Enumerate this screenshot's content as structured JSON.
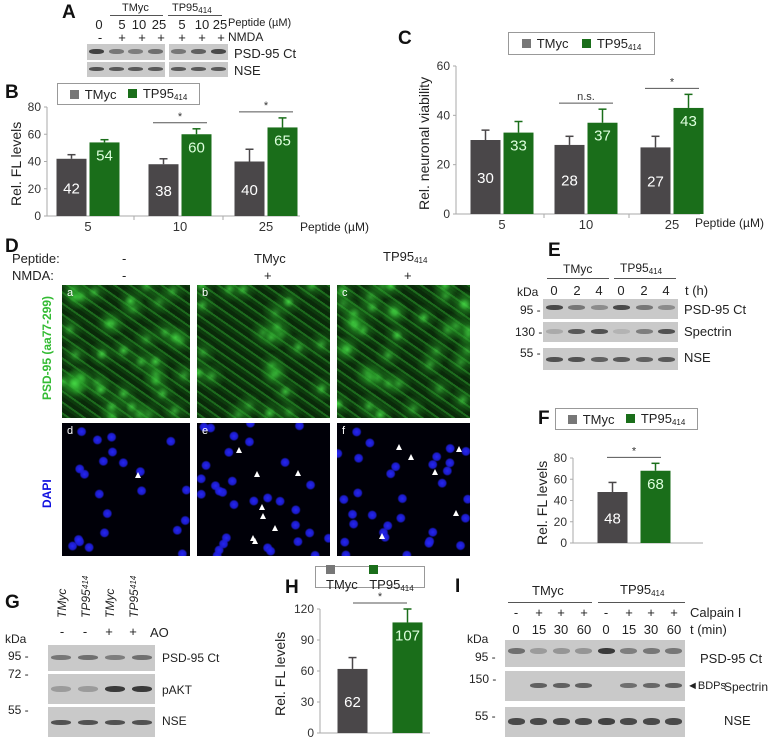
{
  "colors": {
    "tmyc": "#4a4749",
    "tp95": "#1a6e1a",
    "dapi": "#1010e0",
    "psd95": "#33cc33"
  },
  "legend": {
    "tmyc": "TMyc",
    "tp95_base": "TP95",
    "tp95_sub": "414"
  },
  "panelA": {
    "label": "A",
    "group1": "TMyc",
    "group2_base": "TP95",
    "group2_sub": "414",
    "lanes": [
      "0",
      "5",
      "10",
      "25",
      "5",
      "10",
      "25"
    ],
    "nmda": [
      "-",
      "+",
      "+",
      "+",
      "+",
      "+",
      "+"
    ],
    "peptide_label": "Peptide (µM)",
    "nmda_label": "NMDA",
    "rows": [
      "PSD-95 Ct",
      "NSE"
    ]
  },
  "panelE": {
    "label": "E",
    "group1": "TMyc",
    "group2_base": "TP95",
    "group2_sub": "414",
    "lanes": [
      "0",
      "2",
      "4",
      "0",
      "2",
      "4"
    ],
    "time_label": "t (h)",
    "kda": "kDa",
    "markers": [
      "95 -",
      "130 -",
      "55 -"
    ],
    "rows": [
      "PSD-95 Ct",
      "Spectrin",
      "NSE"
    ]
  },
  "panelD": {
    "label": "D",
    "peptide_label": "Peptide:",
    "nmda_label": "NMDA:",
    "columns": [
      {
        "peptide": "-",
        "nmda": "-"
      },
      {
        "peptide": "TMyc",
        "nmda": "+"
      },
      {
        "peptide_base": "TP95",
        "peptide_sub": "414",
        "nmda": "+"
      }
    ],
    "row_labels": [
      "PSD-95 (aa77-299)",
      "DAPI"
    ],
    "tags": [
      "a",
      "b",
      "c",
      "d",
      "e",
      "f"
    ]
  },
  "panelG": {
    "label": "G",
    "lanes": [
      "TMyc",
      "TP95",
      "TMyc",
      "TP95"
    ],
    "lane_sub": "414",
    "ao": [
      "-",
      "-",
      "+",
      "+"
    ],
    "ao_label": "AO",
    "kda": "kDa",
    "markers": [
      "95 -",
      "72 -",
      "55 -"
    ],
    "rows": [
      "PSD-95 Ct",
      "pAKT",
      "NSE"
    ]
  },
  "panelI": {
    "label": "I",
    "group1": "TMyc",
    "group2_base": "TP95",
    "group2_sub": "414",
    "calpain": [
      "-",
      "+",
      "+",
      "+",
      "-",
      "+",
      "+",
      "+"
    ],
    "times": [
      "0",
      "15",
      "30",
      "60",
      "0",
      "15",
      "30",
      "60"
    ],
    "calpain_label": "Calpain I",
    "time_label": "t (min)",
    "kda": "kDa",
    "markers": [
      "95 -",
      "150 -",
      "55 -"
    ],
    "rows": [
      "PSD-95 Ct",
      "Spectrin",
      "NSE"
    ],
    "bdp_label": "◄BDPs"
  },
  "chart_data": [
    {
      "id": "B",
      "label": "B",
      "type": "bar",
      "categories": [
        "5",
        "10",
        "25"
      ],
      "xlabel": "Peptide (µM)",
      "ylabel": "Rel. FL levels",
      "ylim": [
        0,
        80
      ],
      "yticks": [
        "0",
        "20",
        "40",
        "60",
        "80"
      ],
      "series": [
        {
          "name": "TMyc",
          "values": [
            42,
            38,
            40
          ],
          "errors": [
            3,
            4,
            9
          ]
        },
        {
          "name": "TP95414",
          "values": [
            54,
            60,
            65
          ],
          "errors": [
            2,
            4,
            7
          ]
        }
      ],
      "significance": [
        {
          "category": "10",
          "text": "*"
        },
        {
          "category": "25",
          "text": "*"
        }
      ]
    },
    {
      "id": "C",
      "label": "C",
      "type": "bar",
      "categories": [
        "5",
        "10",
        "25"
      ],
      "xlabel": "Peptide (µM)",
      "ylabel": "Rel. neuronal viability",
      "ylim": [
        0,
        60
      ],
      "yticks": [
        "0",
        "20",
        "40",
        "60"
      ],
      "series": [
        {
          "name": "TMyc",
          "values": [
            30,
            28,
            27
          ],
          "errors": [
            4,
            3.5,
            4.5
          ]
        },
        {
          "name": "TP95414",
          "values": [
            33,
            37,
            43
          ],
          "errors": [
            4.5,
            5.5,
            5.5
          ]
        }
      ],
      "significance": [
        {
          "category": "10",
          "text": "n.s."
        },
        {
          "category": "25",
          "text": "*"
        }
      ]
    },
    {
      "id": "F",
      "label": "F",
      "type": "bar",
      "categories": [
        ""
      ],
      "xlabel": "",
      "ylabel": "Rel. FL levels",
      "ylim": [
        0,
        80
      ],
      "yticks": [
        "0",
        "20",
        "40",
        "60",
        "80"
      ],
      "series": [
        {
          "name": "TMyc",
          "values": [
            48
          ],
          "errors": [
            9
          ]
        },
        {
          "name": "TP95414",
          "values": [
            68
          ],
          "errors": [
            7
          ]
        }
      ],
      "significance": [
        {
          "category": "",
          "text": "*"
        }
      ]
    },
    {
      "id": "H",
      "label": "H",
      "type": "bar",
      "categories": [
        ""
      ],
      "xlabel": "",
      "ylabel": "Rel. FL levels",
      "ylim": [
        0,
        120
      ],
      "yticks": [
        "0",
        "30",
        "60",
        "90",
        "120"
      ],
      "series": [
        {
          "name": "TMyc",
          "values": [
            62
          ],
          "errors": [
            11
          ]
        },
        {
          "name": "TP95414",
          "values": [
            107
          ],
          "errors": [
            13
          ]
        }
      ],
      "significance": [
        {
          "category": "",
          "text": "*"
        }
      ]
    }
  ]
}
